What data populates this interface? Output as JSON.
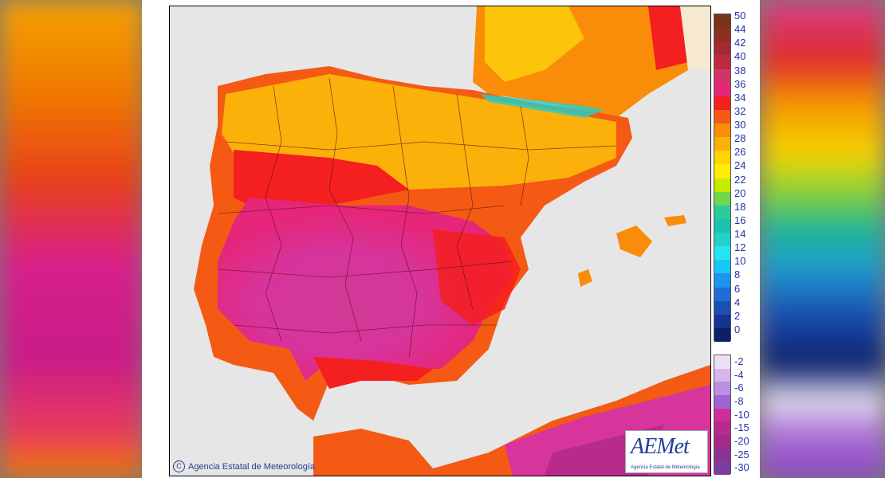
{
  "copyright_text": "Agencia Estatal de Meteorología",
  "logo": {
    "name": "AEMet",
    "subtitle": "Agencia Estatal de Meteorología"
  },
  "legend_top_labels": [
    "50",
    "44",
    "42",
    "40",
    "38",
    "36",
    "34",
    "32",
    "30",
    "28",
    "26",
    "24",
    "22",
    "20",
    "18",
    "16",
    "14",
    "12",
    "10",
    "8",
    "6",
    "4",
    "2",
    "0"
  ],
  "legend_top_colors": [
    "#7a3316",
    "#8e2f1e",
    "#a32a32",
    "#bb2a40",
    "#d33468",
    "#e5267a",
    "#f41f1f",
    "#f45a14",
    "#f98c08",
    "#fcb00a",
    "#ffd400",
    "#ffee00",
    "#c8ea00",
    "#6ed84a",
    "#2fc99b",
    "#1ec3b0",
    "#22d1c9",
    "#24e5f2",
    "#17c8f5",
    "#1c95ea",
    "#1f6dd4",
    "#1d4fb3",
    "#153490",
    "#0d1f6a"
  ],
  "legend_bottom_labels": [
    "-2",
    "-4",
    "-6",
    "-8",
    "-10",
    "-15",
    "-20",
    "-25",
    "-30"
  ],
  "legend_bottom_colors": [
    "#ece1f4",
    "#d4b8ec",
    "#bb8fe2",
    "#a063d6",
    "#cf2e96",
    "#b82a8c",
    "#a22a88",
    "#8c3294",
    "#7d3ca3"
  ],
  "colors": {
    "hot_magenta": "#d7349c",
    "very_hot_red": "#f3261f",
    "orange": "#f98c08",
    "yellow": "#ffd400",
    "sea": "#e6e6e6",
    "land_foreign": "#f7e9d0"
  }
}
